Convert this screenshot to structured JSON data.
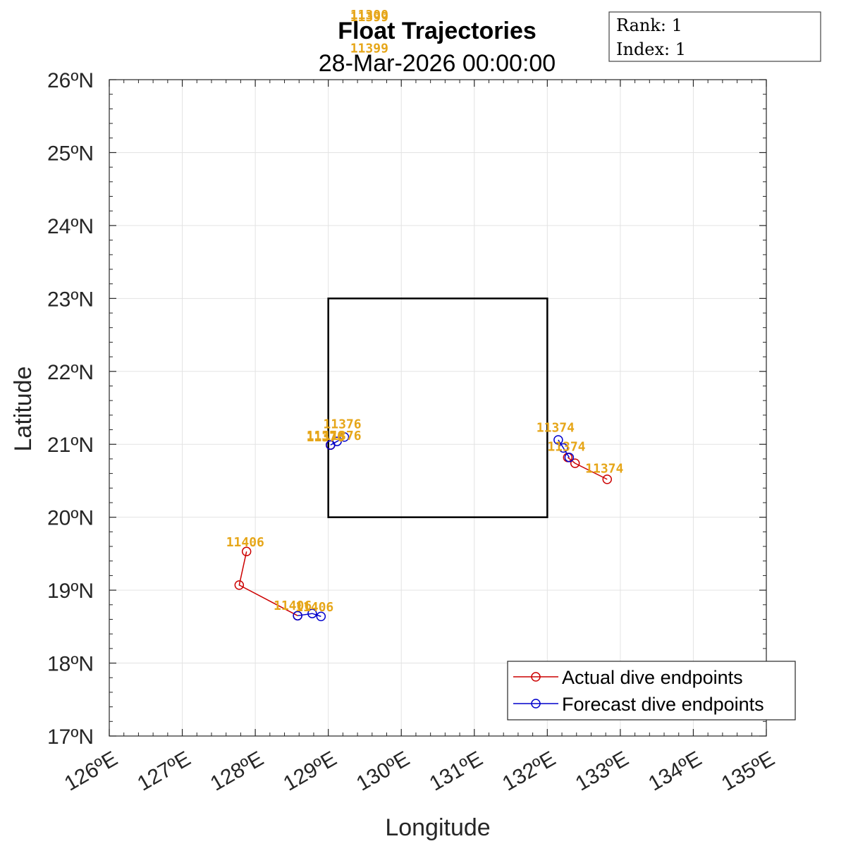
{
  "chart_data": {
    "type": "scatter",
    "title": "Float Trajectories",
    "subtitle": "28-Mar-2026 00:00:00",
    "xlabel": "Longitude",
    "ylabel": "Latitude",
    "xlim": [
      126,
      135
    ],
    "ylim": [
      17,
      26
    ],
    "grid": true,
    "x_tick_labels": [
      "126ºE",
      "127ºE",
      "128ºE",
      "129ºE",
      "130ºE",
      "131ºE",
      "132ºE",
      "133ºE",
      "134ºE",
      "135ºE"
    ],
    "y_tick_labels": [
      "17ºN",
      "18ºN",
      "19ºN",
      "20ºN",
      "21ºN",
      "22ºN",
      "23ºN",
      "24ºN",
      "25ºN",
      "26ºN"
    ],
    "box": {
      "lon": [
        129,
        132
      ],
      "lat": [
        20,
        23
      ]
    },
    "legend_position": "bottom-right",
    "legend": [
      {
        "label": "Actual dive endpoints",
        "color": "#cc0000"
      },
      {
        "label": "Forecast dive endpoints",
        "color": "#0000cc"
      }
    ],
    "info_box": {
      "rank_label": "Rank:  1",
      "index_label": "Index:  1"
    },
    "label_color": "#e6a619",
    "floats": [
      {
        "id": "11406",
        "actual": [
          [
            127.88,
            19.53
          ],
          [
            127.78,
            19.07
          ],
          [
            128.58,
            18.65
          ]
        ],
        "forecast": [
          [
            128.58,
            18.65
          ],
          [
            128.78,
            18.68
          ],
          [
            128.9,
            18.64
          ]
        ],
        "labels": [
          {
            "text": "11406",
            "lon": 127.6,
            "lat": 19.6
          },
          {
            "text": "11406",
            "lon": 128.25,
            "lat": 18.73
          },
          {
            "text": "11406",
            "lon": 128.55,
            "lat": 18.71
          }
        ]
      },
      {
        "id": "11376",
        "actual": [
          [
            129.03,
            20.99
          ],
          [
            129.03,
            20.99
          ]
        ],
        "forecast": [
          [
            129.03,
            20.99
          ],
          [
            129.12,
            21.04
          ],
          [
            129.22,
            21.1
          ]
        ],
        "labels": [
          {
            "text": "11376",
            "lon": 128.7,
            "lat": 21.04
          },
          {
            "text": "11376",
            "lon": 128.7,
            "lat": 21.06
          },
          {
            "text": "11376",
            "lon": 128.93,
            "lat": 21.06
          },
          {
            "text": "11376",
            "lon": 128.93,
            "lat": 21.22
          }
        ]
      },
      {
        "id": "11374",
        "actual": [
          [
            132.82,
            20.52
          ],
          [
            132.38,
            20.74
          ],
          [
            132.28,
            20.82
          ]
        ],
        "forecast": [
          [
            132.15,
            21.06
          ],
          [
            132.22,
            20.95
          ],
          [
            132.3,
            20.82
          ]
        ],
        "labels": [
          {
            "text": "11374",
            "lon": 131.85,
            "lat": 21.17
          },
          {
            "text": "11374",
            "lon": 132.0,
            "lat": 20.91
          },
          {
            "text": "11374",
            "lon": 132.52,
            "lat": 20.61
          }
        ]
      },
      {
        "id": "11399",
        "actual": [],
        "forecast": [],
        "labels": [
          {
            "text": "11399",
            "lon": 129.3,
            "lat": 26.8
          },
          {
            "text": "11399",
            "lon": 129.3,
            "lat": 26.37
          }
        ]
      },
      {
        "id": "11300",
        "actual": [],
        "forecast": [],
        "labels": [
          {
            "text": "11300",
            "lon": 129.3,
            "lat": 26.83
          }
        ]
      }
    ]
  }
}
